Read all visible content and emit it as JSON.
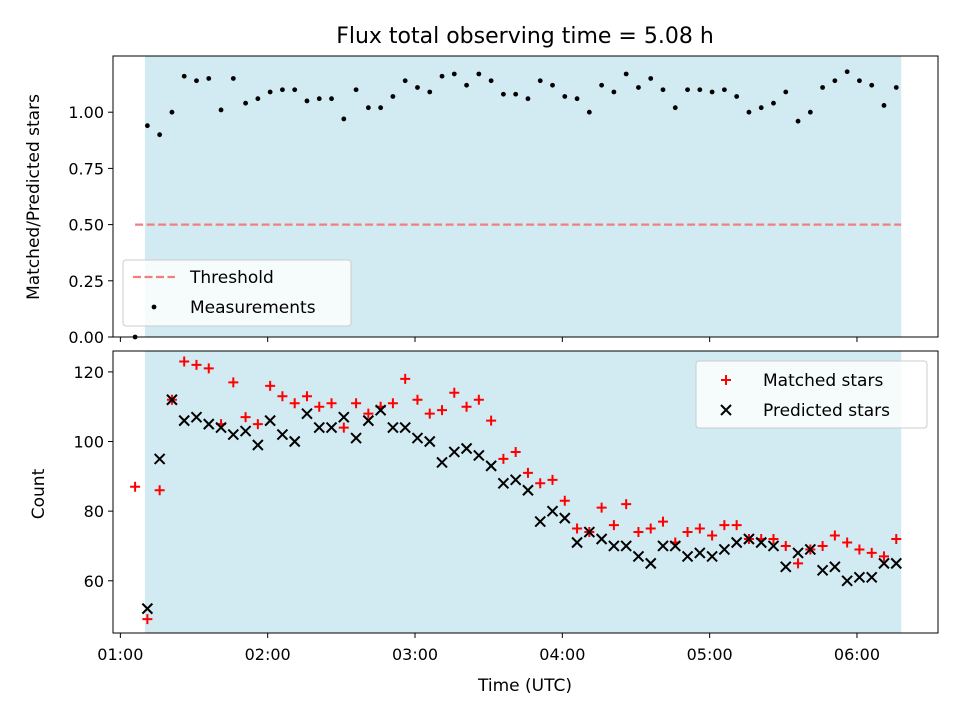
{
  "figure": {
    "title": "Flux total observing time = 5.08 h",
    "xlabel": "Time (UTC)"
  },
  "colors": {
    "shade": "#add8e6",
    "threshold": "#f08080",
    "matched": "#ff0000",
    "predicted": "#000000",
    "measurement": "#000000"
  },
  "chart_data": [
    {
      "type": "scatter",
      "panel": "top",
      "ylabel": "Matched/Predicted stars",
      "ylim": [
        0,
        1.25
      ],
      "yticks": [
        0.0,
        0.25,
        0.5,
        0.75,
        1.0
      ],
      "ytick_labels": [
        "0.00",
        "0.25",
        "0.50",
        "0.75",
        "1.00"
      ],
      "xlim": [
        "00:57",
        "06:33"
      ],
      "xticks": [
        "01:00",
        "02:00",
        "03:00",
        "04:00",
        "05:00",
        "06:00"
      ],
      "shaded_span": [
        "01:10",
        "06:18"
      ],
      "threshold": {
        "name": "Threshold",
        "y": 0.5,
        "x_range": [
          "01:06",
          "06:18"
        ]
      },
      "legend": {
        "position": "lower-left",
        "entries": [
          "Threshold",
          "Measurements"
        ]
      },
      "series": [
        {
          "name": "Measurements",
          "x": [
            "01:06",
            "01:11",
            "01:16",
            "01:21",
            "01:26",
            "01:31",
            "01:36",
            "01:41",
            "01:46",
            "01:51",
            "01:56",
            "02:01",
            "02:06",
            "02:11",
            "02:16",
            "02:21",
            "02:26",
            "02:31",
            "02:36",
            "02:41",
            "02:46",
            "02:51",
            "02:56",
            "03:01",
            "03:06",
            "03:11",
            "03:16",
            "03:21",
            "03:26",
            "03:31",
            "03:36",
            "03:41",
            "03:46",
            "03:51",
            "03:56",
            "04:01",
            "04:06",
            "04:11",
            "04:16",
            "04:21",
            "04:26",
            "04:31",
            "04:36",
            "04:41",
            "04:46",
            "04:51",
            "04:56",
            "05:01",
            "05:06",
            "05:11",
            "05:16",
            "05:21",
            "05:26",
            "05:31",
            "05:36",
            "05:41",
            "05:46",
            "05:51",
            "05:56",
            "06:01",
            "06:06",
            "06:11",
            "06:16"
          ],
          "y": [
            0.0,
            0.94,
            0.9,
            1.0,
            1.16,
            1.14,
            1.15,
            1.01,
            1.15,
            1.04,
            1.06,
            1.09,
            1.1,
            1.1,
            1.05,
            1.06,
            1.06,
            0.97,
            1.1,
            1.02,
            1.02,
            1.07,
            1.14,
            1.11,
            1.09,
            1.16,
            1.17,
            1.12,
            1.17,
            1.14,
            1.08,
            1.08,
            1.06,
            1.14,
            1.12,
            1.07,
            1.06,
            1.0,
            1.12,
            1.09,
            1.17,
            1.11,
            1.15,
            1.1,
            1.02,
            1.1,
            1.1,
            1.09,
            1.1,
            1.07,
            1.0,
            1.02,
            1.04,
            1.09,
            0.96,
            1.0,
            1.11,
            1.14,
            1.18,
            1.14,
            1.12,
            1.03,
            1.11
          ]
        }
      ]
    },
    {
      "type": "scatter",
      "panel": "bottom",
      "ylabel": "Count",
      "ylim": [
        45,
        126
      ],
      "yticks": [
        60,
        80,
        100,
        120
      ],
      "ytick_labels": [
        "60",
        "80",
        "100",
        "120"
      ],
      "xlim": [
        "00:57",
        "06:33"
      ],
      "xticks": [
        "01:00",
        "02:00",
        "03:00",
        "04:00",
        "05:00",
        "06:00"
      ],
      "xtick_labels": [
        "01:00",
        "02:00",
        "03:00",
        "04:00",
        "05:00",
        "06:00"
      ],
      "shaded_span": [
        "01:10",
        "06:18"
      ],
      "legend": {
        "position": "top-right",
        "entries": [
          "Matched stars",
          "Predicted stars"
        ]
      },
      "series": [
        {
          "name": "Matched stars",
          "marker": "plus",
          "x": [
            "01:06",
            "01:11",
            "01:16",
            "01:21",
            "01:26",
            "01:31",
            "01:36",
            "01:41",
            "01:46",
            "01:51",
            "01:56",
            "02:01",
            "02:06",
            "02:11",
            "02:16",
            "02:21",
            "02:26",
            "02:31",
            "02:36",
            "02:41",
            "02:46",
            "02:51",
            "02:56",
            "03:01",
            "03:06",
            "03:11",
            "03:16",
            "03:21",
            "03:26",
            "03:31",
            "03:36",
            "03:41",
            "03:46",
            "03:51",
            "03:56",
            "04:01",
            "04:06",
            "04:11",
            "04:16",
            "04:21",
            "04:26",
            "04:31",
            "04:36",
            "04:41",
            "04:46",
            "04:51",
            "04:56",
            "05:01",
            "05:06",
            "05:11",
            "05:16",
            "05:21",
            "05:26",
            "05:31",
            "05:36",
            "05:41",
            "05:46",
            "05:51",
            "05:56",
            "06:01",
            "06:06",
            "06:11",
            "06:16"
          ],
          "y": [
            87,
            49,
            86,
            112,
            123,
            122,
            121,
            105,
            117,
            107,
            105,
            116,
            113,
            111,
            113,
            110,
            111,
            104,
            111,
            108,
            110,
            111,
            118,
            112,
            108,
            109,
            114,
            110,
            112,
            106,
            95,
            97,
            91,
            88,
            89,
            83,
            75,
            74,
            81,
            76,
            82,
            74,
            75,
            77,
            71,
            74,
            75,
            73,
            76,
            76,
            72,
            72,
            72,
            70,
            65,
            69,
            70,
            73,
            71,
            69,
            68,
            67,
            72
          ]
        },
        {
          "name": "Predicted stars",
          "marker": "x",
          "x": [
            "01:11",
            "01:16",
            "01:21",
            "01:26",
            "01:31",
            "01:36",
            "01:41",
            "01:46",
            "01:51",
            "01:56",
            "02:01",
            "02:06",
            "02:11",
            "02:16",
            "02:21",
            "02:26",
            "02:31",
            "02:36",
            "02:41",
            "02:46",
            "02:51",
            "02:56",
            "03:01",
            "03:06",
            "03:11",
            "03:16",
            "03:21",
            "03:26",
            "03:31",
            "03:36",
            "03:41",
            "03:46",
            "03:51",
            "03:56",
            "04:01",
            "04:06",
            "04:11",
            "04:16",
            "04:21",
            "04:26",
            "04:31",
            "04:36",
            "04:41",
            "04:46",
            "04:51",
            "04:56",
            "05:01",
            "05:06",
            "05:11",
            "05:16",
            "05:21",
            "05:26",
            "05:31",
            "05:36",
            "05:41",
            "05:46",
            "05:51",
            "05:56",
            "06:01",
            "06:06",
            "06:11",
            "06:16"
          ],
          "y": [
            52,
            95,
            112,
            106,
            107,
            105,
            104,
            102,
            103,
            99,
            106,
            102,
            100,
            108,
            104,
            104,
            107,
            101,
            106,
            109,
            104,
            104,
            101,
            100,
            94,
            97,
            98,
            96,
            93,
            88,
            89,
            86,
            77,
            80,
            78,
            71,
            74,
            72,
            70,
            70,
            67,
            65,
            70,
            70,
            67,
            68,
            67,
            69,
            71,
            72,
            71,
            70,
            64,
            68,
            69,
            63,
            64,
            60,
            61,
            61,
            65,
            65
          ]
        }
      ]
    }
  ]
}
